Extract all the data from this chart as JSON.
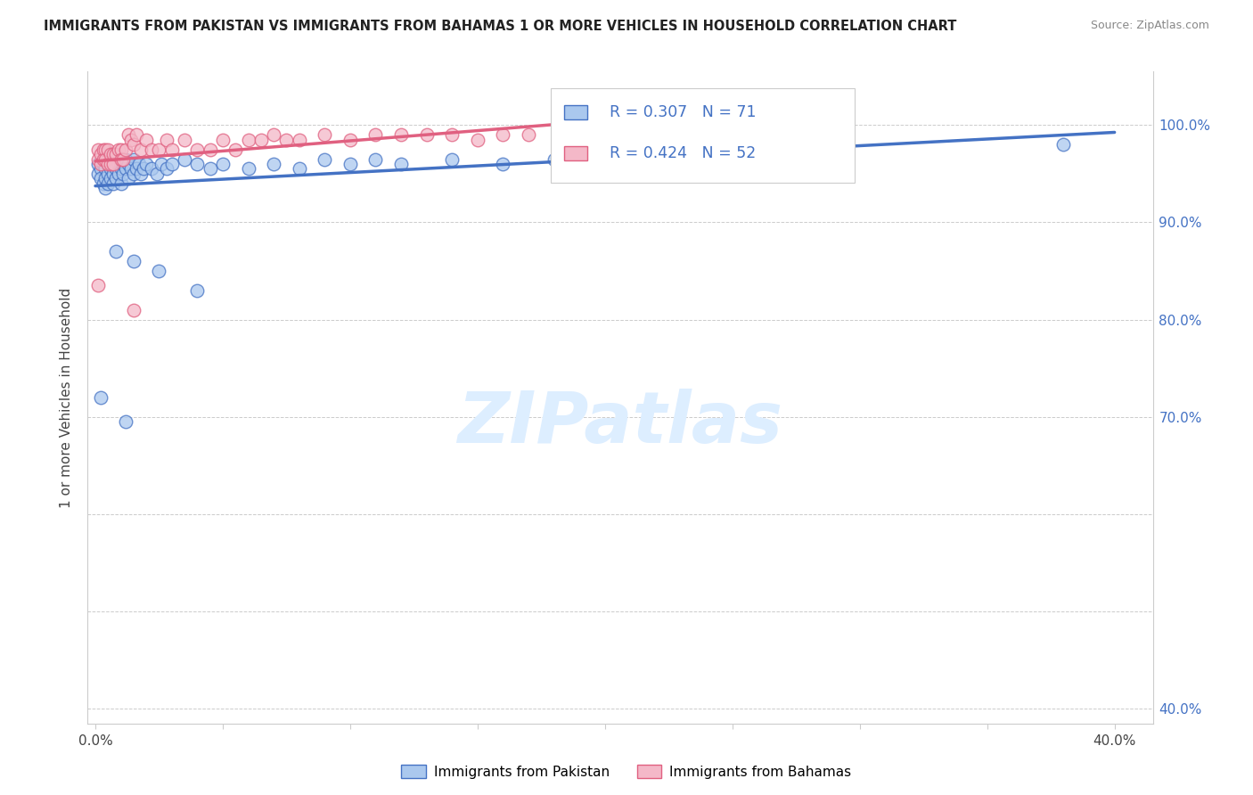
{
  "title": "IMMIGRANTS FROM PAKISTAN VS IMMIGRANTS FROM BAHAMAS 1 OR MORE VEHICLES IN HOUSEHOLD CORRELATION CHART",
  "source": "Source: ZipAtlas.com",
  "ylabel": "1 or more Vehicles in Household",
  "xlim": [
    -0.003,
    0.415
  ],
  "ylim": [
    0.385,
    1.055
  ],
  "x_tick_positions": [
    0.0,
    0.05,
    0.1,
    0.15,
    0.2,
    0.25,
    0.3,
    0.35,
    0.4
  ],
  "x_tick_labels": [
    "0.0%",
    "",
    "",
    "",
    "",
    "",
    "",
    "",
    "40.0%"
  ],
  "y_tick_positions": [
    0.4,
    0.5,
    0.6,
    0.7,
    0.8,
    0.9,
    1.0
  ],
  "y_tick_labels_right": [
    "40.0%",
    "",
    "",
    "70.0%",
    "80.0%",
    "90.0%",
    "100.0%"
  ],
  "R_pakistan": 0.307,
  "N_pakistan": 71,
  "R_bahamas": 0.424,
  "N_bahamas": 52,
  "pakistan_face_color": "#aac8ee",
  "pakistan_edge_color": "#4472c4",
  "bahamas_face_color": "#f4b8c8",
  "bahamas_edge_color": "#e06080",
  "pakistan_line_color": "#4472c4",
  "bahamas_line_color": "#e06080",
  "right_axis_color": "#4472c4",
  "legend_label_pakistan": "Immigrants from Pakistan",
  "legend_label_bahamas": "Immigrants from Bahamas",
  "watermark": "ZIPatlas",
  "watermark_color": "#ddeeff",
  "pak_x": [
    0.001,
    0.001,
    0.002,
    0.002,
    0.003,
    0.003,
    0.003,
    0.004,
    0.004,
    0.004,
    0.005,
    0.005,
    0.005,
    0.006,
    0.006,
    0.006,
    0.007,
    0.007,
    0.007,
    0.008,
    0.008,
    0.008,
    0.009,
    0.009,
    0.01,
    0.01,
    0.01,
    0.011,
    0.011,
    0.012,
    0.012,
    0.013,
    0.013,
    0.014,
    0.015,
    0.015,
    0.016,
    0.017,
    0.018,
    0.019,
    0.02,
    0.022,
    0.024,
    0.026,
    0.028,
    0.03,
    0.035,
    0.04,
    0.045,
    0.05,
    0.06,
    0.07,
    0.08,
    0.09,
    0.1,
    0.11,
    0.12,
    0.14,
    0.16,
    0.18,
    0.2,
    0.22,
    0.25,
    0.28,
    0.38,
    0.008,
    0.015,
    0.025,
    0.04,
    0.002,
    0.012
  ],
  "pak_y": [
    0.96,
    0.95,
    0.955,
    0.945,
    0.965,
    0.96,
    0.94,
    0.955,
    0.945,
    0.935,
    0.96,
    0.95,
    0.94,
    0.965,
    0.955,
    0.945,
    0.96,
    0.95,
    0.94,
    0.965,
    0.955,
    0.945,
    0.96,
    0.95,
    0.965,
    0.955,
    0.94,
    0.96,
    0.95,
    0.965,
    0.955,
    0.96,
    0.945,
    0.955,
    0.965,
    0.95,
    0.955,
    0.96,
    0.95,
    0.955,
    0.96,
    0.955,
    0.95,
    0.96,
    0.955,
    0.96,
    0.965,
    0.96,
    0.955,
    0.96,
    0.955,
    0.96,
    0.955,
    0.965,
    0.96,
    0.965,
    0.96,
    0.965,
    0.96,
    0.965,
    0.965,
    0.965,
    0.97,
    0.97,
    0.98,
    0.87,
    0.86,
    0.85,
    0.83,
    0.72,
    0.695
  ],
  "bah_x": [
    0.001,
    0.001,
    0.002,
    0.002,
    0.003,
    0.003,
    0.004,
    0.004,
    0.005,
    0.005,
    0.006,
    0.006,
    0.007,
    0.007,
    0.008,
    0.009,
    0.01,
    0.01,
    0.011,
    0.012,
    0.013,
    0.014,
    0.015,
    0.016,
    0.018,
    0.02,
    0.022,
    0.025,
    0.028,
    0.03,
    0.035,
    0.04,
    0.045,
    0.05,
    0.055,
    0.06,
    0.065,
    0.07,
    0.075,
    0.08,
    0.09,
    0.1,
    0.11,
    0.12,
    0.13,
    0.14,
    0.15,
    0.16,
    0.17,
    0.19,
    0.001,
    0.015
  ],
  "bah_y": [
    0.975,
    0.965,
    0.97,
    0.96,
    0.975,
    0.965,
    0.975,
    0.965,
    0.975,
    0.96,
    0.97,
    0.96,
    0.97,
    0.96,
    0.97,
    0.975,
    0.975,
    0.965,
    0.965,
    0.975,
    0.99,
    0.985,
    0.98,
    0.99,
    0.975,
    0.985,
    0.975,
    0.975,
    0.985,
    0.975,
    0.985,
    0.975,
    0.975,
    0.985,
    0.975,
    0.985,
    0.985,
    0.99,
    0.985,
    0.985,
    0.99,
    0.985,
    0.99,
    0.99,
    0.99,
    0.99,
    0.985,
    0.99,
    0.99,
    0.99,
    0.835,
    0.81
  ]
}
